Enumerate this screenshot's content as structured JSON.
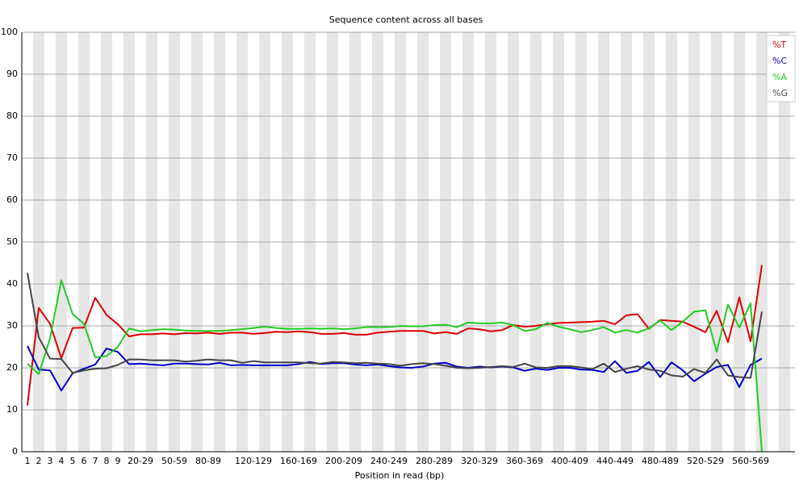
{
  "chart_data": {
    "type": "line",
    "title": "Sequence content across all bases",
    "x_label": "Position in read (bp)",
    "categories": [
      "1",
      "2",
      "3",
      "4",
      "5",
      "6",
      "7",
      "8",
      "9",
      null,
      "20-29",
      null,
      null,
      "50-59",
      null,
      null,
      "80-89",
      null,
      null,
      null,
      "120-129",
      null,
      null,
      null,
      "160-169",
      null,
      null,
      null,
      "200-209",
      null,
      null,
      null,
      "240-249",
      null,
      null,
      null,
      "280-289",
      null,
      null,
      null,
      "320-329",
      null,
      null,
      null,
      "360-369",
      null,
      null,
      null,
      "400-409",
      null,
      null,
      null,
      "440-449",
      null,
      null,
      null,
      "480-489",
      null,
      null,
      null,
      "520-529",
      null,
      null,
      null,
      "560-569",
      null
    ],
    "series": [
      {
        "name": "%T",
        "color": "#dd0000",
        "values": [
          11,
          34.3,
          30.5,
          22.3,
          29.5,
          29.6,
          36.7,
          32.6,
          30.4,
          27.5,
          28,
          28,
          28.2,
          28,
          28.3,
          28.2,
          28.4,
          28.1,
          28.4,
          28.4,
          28.1,
          28.3,
          28.6,
          28.5,
          28.7,
          28.5,
          28.1,
          28.1,
          28.3,
          27.9,
          27.9,
          28.4,
          28.6,
          28.8,
          28.8,
          28.8,
          28.2,
          28.5,
          28.1,
          29.4,
          29.2,
          28.7,
          29.0,
          30.2,
          29.8,
          30.0,
          30.4,
          30.7,
          30.8,
          30.9,
          31.0,
          31.2,
          30.4,
          32.5,
          32.8,
          29.3,
          31.4,
          31.2,
          31.0,
          29.8,
          28.5,
          33.6,
          26.1,
          36.8,
          26.3,
          44.5
        ]
      },
      {
        "name": "%C",
        "color": "#0000cc",
        "values": [
          25.2,
          19.6,
          19.4,
          14.6,
          18.7,
          19.8,
          20.8,
          24.6,
          23.8,
          20.9,
          21,
          20.8,
          20.6,
          21,
          21,
          20.9,
          20.8,
          21.2,
          20.6,
          20.7,
          20.6,
          20.6,
          20.6,
          20.6,
          20.9,
          21.4,
          20.9,
          21.1,
          21.1,
          20.8,
          20.6,
          20.8,
          20.4,
          20.1,
          20.0,
          20.3,
          21.0,
          21.2,
          20.3,
          20.0,
          20.3,
          20.1,
          20.3,
          20.1,
          19.3,
          19.8,
          19.5,
          20.0,
          20.0,
          19.6,
          19.5,
          19.0,
          21.6,
          18.8,
          19.3,
          21.4,
          17.8,
          21.3,
          19.4,
          16.8,
          18.6,
          20.2,
          20.7,
          15.4,
          20.7,
          22.2
        ]
      },
      {
        "name": "%A",
        "color": "#22cc22",
        "values": [
          21,
          18.5,
          27,
          40.9,
          32.8,
          30.5,
          22.5,
          22.8,
          25,
          29.4,
          28.7,
          29,
          29.2,
          29.1,
          28.9,
          28.8,
          28.8,
          28.8,
          29,
          29.2,
          29.5,
          29.8,
          29.5,
          29.3,
          29.3,
          29.4,
          29.3,
          29.4,
          29.2,
          29.4,
          29.7,
          29.7,
          29.7,
          30,
          29.9,
          29.9,
          30.2,
          30.3,
          29.7,
          30.8,
          30.6,
          30.6,
          30.8,
          30.2,
          28.8,
          29.2,
          30.7,
          29.8,
          29.2,
          28.5,
          29.0,
          29.7,
          28.4,
          29.0,
          28.4,
          29.4,
          31.3,
          29.0,
          31.0,
          33.4,
          33.7,
          23.8,
          35.1,
          29.6,
          35.4,
          0
        ]
      },
      {
        "name": "%G",
        "color": "#444444",
        "values": [
          42.6,
          27.3,
          22.2,
          22.1,
          18.8,
          19.4,
          19.8,
          19.9,
          20.7,
          22,
          22,
          21.8,
          21.8,
          21.8,
          21.5,
          21.7,
          22.0,
          21.8,
          21.8,
          21.2,
          21.6,
          21.3,
          21.3,
          21.3,
          21.3,
          21.1,
          21.0,
          21.4,
          21.3,
          21.1,
          21.2,
          21.0,
          20.9,
          20.5,
          20.9,
          21.1,
          20.9,
          20.5,
          20.0,
          19.9,
          20.0,
          20.2,
          20.4,
          20.2,
          21.0,
          20.1,
          20.0,
          20.4,
          20.4,
          20.1,
          19.7,
          21.0,
          19.0,
          19.8,
          20.4,
          19.6,
          19.3,
          18.2,
          17.9,
          19.7,
          18.8,
          22.0,
          18.2,
          17.8,
          17.6,
          33.4
        ]
      }
    ],
    "ylim": [
      0,
      100
    ],
    "yticks": [
      0,
      10,
      20,
      30,
      40,
      50,
      60,
      70,
      80,
      90,
      100
    ],
    "grid": true,
    "legend": "upper right"
  }
}
